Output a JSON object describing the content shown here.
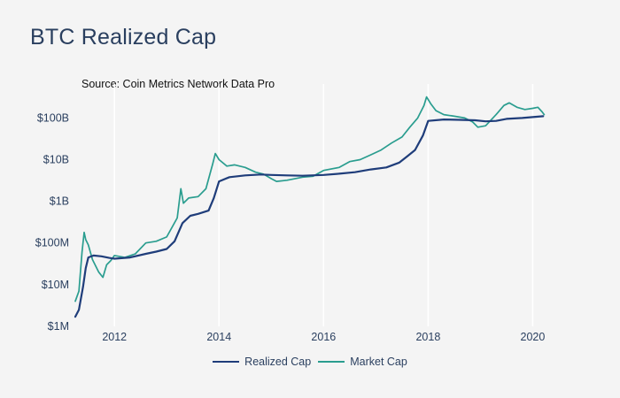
{
  "title": "BTC Realized Cap",
  "source": "Source: Coin Metrics Network Data Pro",
  "colors": {
    "realized": "#1f3d7a",
    "market": "#2a9d8f",
    "grid": "#ffffff",
    "background": "#f4f4f4",
    "text": "#2a3f5f"
  },
  "chart_data": {
    "type": "line",
    "title": "BTC Realized Cap",
    "xlabel": "",
    "ylabel": "",
    "yscale": "log",
    "ylim": [
      1000000,
      400000000000
    ],
    "xlim": [
      2011.2,
      2020.45
    ],
    "y_ticks": [
      {
        "value": 1000000,
        "label": "$1M"
      },
      {
        "value": 10000000,
        "label": "$10M"
      },
      {
        "value": 100000000,
        "label": "$100M"
      },
      {
        "value": 1000000000,
        "label": "$1B"
      },
      {
        "value": 10000000000,
        "label": "$10B"
      },
      {
        "value": 100000000000,
        "label": "$100B"
      }
    ],
    "x_ticks": [
      {
        "value": 2012,
        "label": "2012"
      },
      {
        "value": 2014,
        "label": "2014"
      },
      {
        "value": 2016,
        "label": "2016"
      },
      {
        "value": 2018,
        "label": "2018"
      },
      {
        "value": 2020,
        "label": "2020"
      }
    ],
    "legend_position": "bottom-center",
    "series": [
      {
        "name": "Realized Cap",
        "color": "#1f3d7a",
        "x": [
          2011.25,
          2011.32,
          2011.4,
          2011.45,
          2011.5,
          2011.6,
          2011.75,
          2011.9,
          2012.0,
          2012.3,
          2012.6,
          2012.8,
          2013.0,
          2013.15,
          2013.3,
          2013.45,
          2013.6,
          2013.8,
          2013.9,
          2014.0,
          2014.2,
          2014.5,
          2014.8,
          2015.0,
          2015.3,
          2015.6,
          2016.0,
          2016.3,
          2016.6,
          2016.9,
          2017.2,
          2017.45,
          2017.6,
          2017.75,
          2017.9,
          2018.0,
          2018.3,
          2018.6,
          2018.9,
          2019.1,
          2019.3,
          2019.5,
          2019.8,
          2020.0,
          2020.2
        ],
        "values": [
          1700000,
          2500000,
          9000000,
          25000000,
          45000000,
          50000000,
          48000000,
          44000000,
          42000000,
          45000000,
          55000000,
          62000000,
          72000000,
          110000000,
          300000000,
          450000000,
          500000000,
          600000000,
          1200000000,
          3000000000,
          3800000000,
          4200000000,
          4400000000,
          4300000000,
          4200000000,
          4100000000,
          4300000000,
          4600000000,
          5000000000,
          5800000000,
          6500000000,
          8500000000,
          12000000000,
          17000000000,
          38000000000,
          85000000000,
          92000000000,
          90000000000,
          88000000000,
          83000000000,
          85000000000,
          95000000000,
          100000000000,
          105000000000,
          110000000000
        ]
      },
      {
        "name": "Market Cap",
        "color": "#2a9d8f",
        "x": [
          2011.25,
          2011.32,
          2011.38,
          2011.42,
          2011.45,
          2011.5,
          2011.58,
          2011.7,
          2011.78,
          2011.85,
          2011.93,
          2012.0,
          2012.2,
          2012.4,
          2012.6,
          2012.8,
          2013.0,
          2013.2,
          2013.27,
          2013.32,
          2013.42,
          2013.6,
          2013.75,
          2013.88,
          2013.93,
          2014.0,
          2014.15,
          2014.3,
          2014.5,
          2014.7,
          2014.85,
          2015.0,
          2015.1,
          2015.3,
          2015.6,
          2015.8,
          2016.0,
          2016.3,
          2016.5,
          2016.7,
          2016.9,
          2017.1,
          2017.3,
          2017.5,
          2017.65,
          2017.8,
          2017.92,
          2017.97,
          2018.05,
          2018.15,
          2018.3,
          2018.5,
          2018.7,
          2018.85,
          2018.95,
          2019.1,
          2019.3,
          2019.45,
          2019.55,
          2019.7,
          2019.85,
          2020.0,
          2020.1,
          2020.18,
          2020.22
        ],
        "values": [
          4000000,
          7000000,
          60000000,
          180000000,
          120000000,
          90000000,
          40000000,
          20000000,
          15000000,
          30000000,
          38000000,
          50000000,
          45000000,
          55000000,
          100000000,
          110000000,
          140000000,
          400000000,
          2000000000,
          900000000,
          1200000000,
          1300000000,
          2000000000,
          8000000000,
          14000000000,
          10000000000,
          7000000000,
          7500000000,
          6500000000,
          5000000000,
          4500000000,
          3500000000,
          3000000000,
          3200000000,
          3800000000,
          4000000000,
          5500000000,
          6500000000,
          9000000000,
          10000000000,
          13000000000,
          17000000000,
          25000000000,
          35000000000,
          60000000000,
          100000000000,
          200000000000,
          320000000000,
          220000000000,
          150000000000,
          120000000000,
          110000000000,
          100000000000,
          80000000000,
          60000000000,
          65000000000,
          120000000000,
          200000000000,
          230000000000,
          180000000000,
          160000000000,
          170000000000,
          180000000000,
          140000000000,
          120000000000
        ]
      }
    ]
  }
}
